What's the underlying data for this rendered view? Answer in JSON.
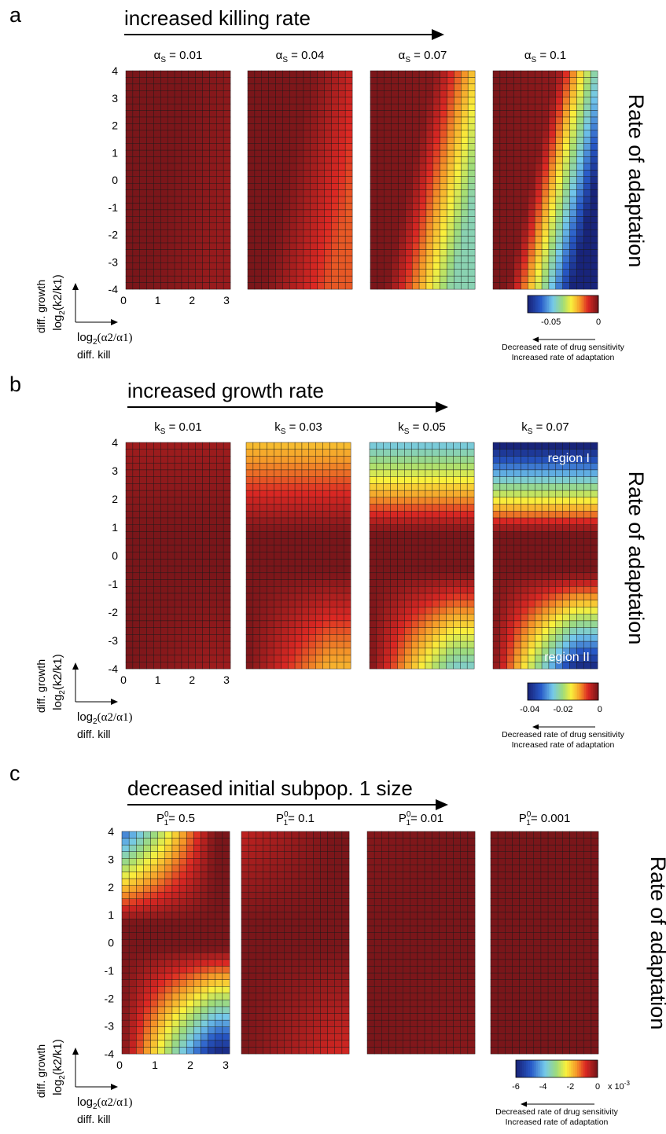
{
  "panels": [
    {
      "letter": "a",
      "arrow_label": "increased killing rate",
      "side_label": "Rate of adaptation",
      "param_symbol": "α",
      "param_sub": "S",
      "heatmaps": [
        {
          "label": " = 0.01",
          "intensity": 0.04,
          "slope": 0.15,
          "center": 0.0
        },
        {
          "label": " = 0.04",
          "intensity": 0.18,
          "slope": 0.25,
          "center": 0.0
        },
        {
          "label": " = 0.07",
          "intensity": 0.55,
          "slope": 0.35,
          "center": 0.0
        },
        {
          "label": " = 0.1",
          "intensity": 1.0,
          "slope": 0.45,
          "center": 0.0
        }
      ],
      "yticks": [
        "4",
        "3",
        "2",
        "1",
        "0",
        "-1",
        "-2",
        "-3",
        "-4"
      ],
      "xticks": [
        "0",
        "1",
        "2",
        "3"
      ],
      "axis": {
        "ylab1": "diff. growth",
        "ylab2": "log",
        "ylab2_sub": "2",
        "ylab2_rest": "(k2/k1)",
        "xlab1": "log",
        "xlab1_sub": "2",
        "xlab1_rest": "(α2/α1)",
        "xlab2": "diff. kill"
      },
      "colorbar": {
        "ticks": [
          "-0.05",
          "0"
        ],
        "note1": "Decreased rate of drug sensitivity",
        "note2": "Increased rate of adaptation",
        "exponent": ""
      }
    },
    {
      "letter": "b",
      "arrow_label": "increased growth rate",
      "side_label": "Rate of adaptation",
      "param_symbol": "k",
      "param_sub": "S",
      "heatmaps": [
        {
          "label": " = 0.01",
          "intensity": 0.05,
          "mode": "growth"
        },
        {
          "label": " = 0.03",
          "intensity": 0.3,
          "mode": "growth"
        },
        {
          "label": " = 0.05",
          "intensity": 0.62,
          "mode": "growth"
        },
        {
          "label": " = 0.07",
          "intensity": 1.0,
          "mode": "growth"
        }
      ],
      "region_labels": [
        "region I",
        "region II"
      ],
      "yticks": [
        "4",
        "3",
        "2",
        "1",
        "0",
        "-1",
        "-2",
        "-3",
        "-4"
      ],
      "xticks": [
        "0",
        "1",
        "2",
        "3"
      ],
      "axis": {
        "ylab1": "diff. growth",
        "ylab2": "log",
        "ylab2_sub": "2",
        "ylab2_rest": "(k2/k1)",
        "xlab1": "log",
        "xlab1_sub": "2",
        "xlab1_rest": "(α2/α1)",
        "xlab2": "diff. kill"
      },
      "colorbar": {
        "ticks": [
          "-0.04",
          "-0.02",
          "0"
        ],
        "note1": "Decreased rate of drug sensitivity",
        "note2": "Increased rate of adaptation",
        "exponent": ""
      }
    },
    {
      "letter": "c",
      "arrow_label": "decreased initial subpop. 1 size",
      "side_label": "Rate of adaptation",
      "param_symbol": "P",
      "param_sub": "1",
      "param_sup": "0",
      "heatmaps": [
        {
          "label": "= 0.5",
          "intensity": 0.95,
          "mode": "initial"
        },
        {
          "label": "= 0.1",
          "intensity": 0.12,
          "mode": "initial"
        },
        {
          "label": "= 0.01",
          "intensity": 0.02,
          "mode": "initial"
        },
        {
          "label": "= 0.001",
          "intensity": 0.0,
          "mode": "initial"
        }
      ],
      "yticks": [
        "4",
        "3",
        "2",
        "1",
        "0",
        "-1",
        "-2",
        "-3",
        "-4"
      ],
      "xticks": [
        "0",
        "1",
        "2",
        "3"
      ],
      "axis": {
        "ylab1": "diff. growth",
        "ylab2": "log",
        "ylab2_sub": "2",
        "ylab2_rest": "(k2/k1)",
        "xlab1": "log",
        "xlab1_sub": "2",
        "xlab1_rest": "(α2/α1)",
        "xlab2": "diff. kill"
      },
      "colorbar": {
        "ticks": [
          "-6",
          "-4",
          "-2",
          "0"
        ],
        "note1": "Decreased rate of drug sensitivity",
        "note2": "Increased rate of adaptation",
        "exponent": "x 10"
      }
    }
  ],
  "chart_data": {
    "type": "heatmap",
    "grid": {
      "x_range": [
        0,
        3
      ],
      "y_range": [
        -4,
        4
      ],
      "x_cells": 15,
      "y_cells": 33
    },
    "x_label": "log2(α2/α1)",
    "y_label": "log2(k2/k1)",
    "value_label": "Rate of adaptation",
    "colormap": "jet",
    "panels": [
      {
        "id": "a",
        "parameter": "αS",
        "values": [
          0.01,
          0.04,
          0.07,
          0.1
        ],
        "color_range": [
          -0.06,
          0
        ]
      },
      {
        "id": "b",
        "parameter": "kS",
        "values": [
          0.01,
          0.03,
          0.05,
          0.07
        ],
        "color_range": [
          -0.045,
          0
        ]
      },
      {
        "id": "c",
        "parameter": "P1^0",
        "values": [
          0.5,
          0.1,
          0.01,
          0.001
        ],
        "color_range": [
          -0.007,
          0
        ],
        "color_scale": "x 10^-3"
      }
    ]
  },
  "colors": {
    "text": "#000000",
    "grid_line": "#1a1a1a"
  }
}
